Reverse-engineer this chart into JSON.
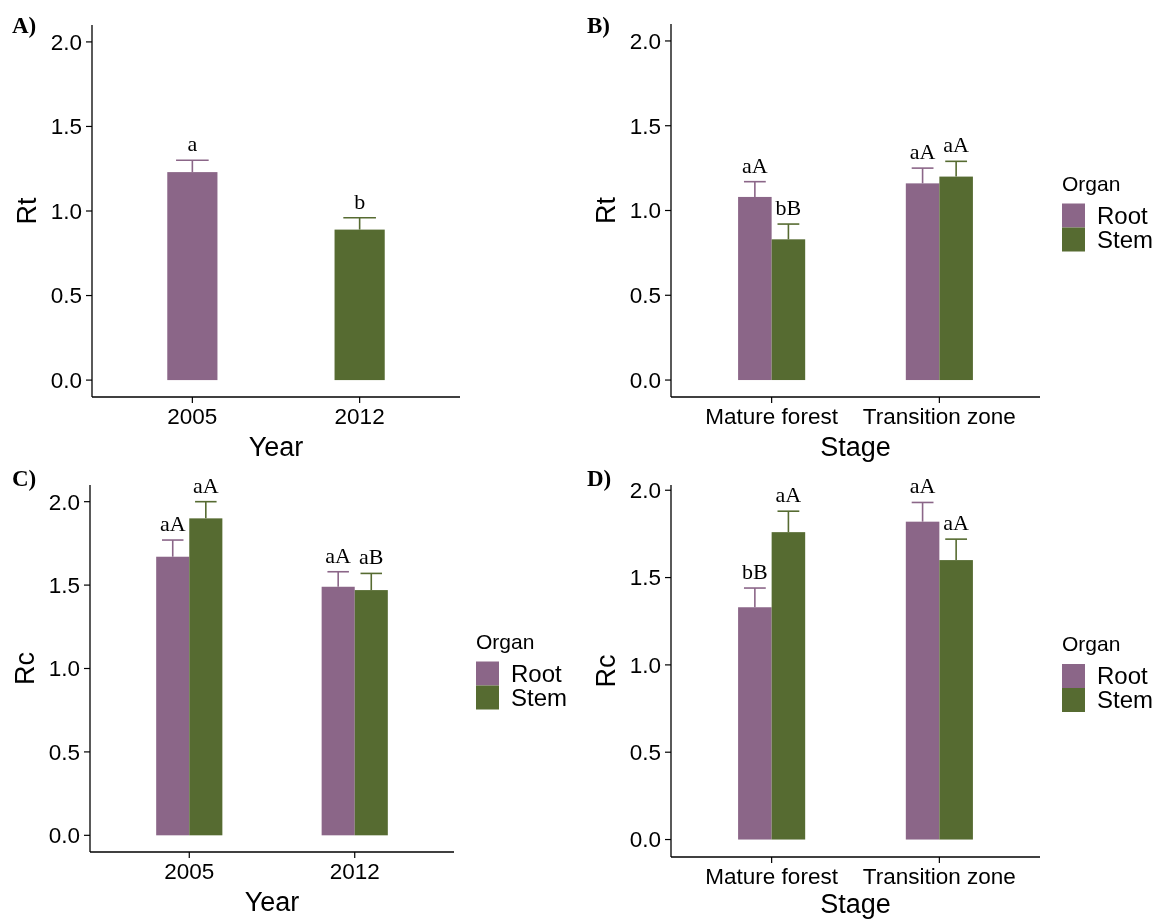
{
  "chart_data": [
    {
      "type": "bar",
      "title": "A)",
      "xlabel": "Year",
      "ylabel": "Rt",
      "categories": [
        "2005",
        "2012"
      ],
      "values": [
        1.23,
        0.89
      ],
      "colors": [
        "#8b6688",
        "#566b31"
      ],
      "errors": [
        [
          1.23,
          1.3
        ],
        [
          0.89,
          0.96
        ]
      ],
      "value_labels": [
        "a",
        "b"
      ],
      "ylim": [
        -0.1,
        2.1
      ],
      "yticks": [
        {
          "value": 0,
          "label": "0.0"
        },
        {
          "value": 0.5,
          "label": "0.5"
        },
        {
          "value": 1,
          "label": "1.0"
        },
        {
          "value": 1.5,
          "label": "1.5"
        },
        {
          "value": 2,
          "label": "2.0"
        }
      ]
    },
    {
      "type": "bar",
      "title": "B)",
      "xlabel": "Stage",
      "ylabel": "Rt",
      "legend_title": "Organ",
      "legend": "right",
      "categories": [
        "Mature forest",
        "Transition zone"
      ],
      "series": [
        {
          "name": "Root",
          "color": "#8b6688",
          "values": [
            1.08,
            1.16
          ],
          "errors": [
            [
              1.08,
              1.17
            ],
            [
              1.16,
              1.25
            ]
          ],
          "value_labels": [
            "aA",
            "aA"
          ]
        },
        {
          "name": "Stem",
          "color": "#566b31",
          "values": [
            0.83,
            1.2
          ],
          "errors": [
            [
              0.83,
              0.92
            ],
            [
              1.2,
              1.29
            ]
          ],
          "value_labels": [
            "bB",
            "aA"
          ]
        }
      ],
      "ylim": [
        -0.1,
        2.1
      ],
      "yticks": [
        {
          "value": 0,
          "label": "0.0"
        },
        {
          "value": 0.5,
          "label": "0.5"
        },
        {
          "value": 1,
          "label": "1.0"
        },
        {
          "value": 1.5,
          "label": "1.5"
        },
        {
          "value": 2,
          "label": "2.0"
        }
      ]
    },
    {
      "type": "bar",
      "title": "C)",
      "xlabel": "Year",
      "ylabel": "Rc",
      "legend_title": "Organ",
      "legend": "right",
      "categories": [
        "2005",
        "2012"
      ],
      "series": [
        {
          "name": "Root",
          "color": "#8b6688",
          "values": [
            1.67,
            1.49
          ],
          "errors": [
            [
              1.67,
              1.77
            ],
            [
              1.49,
              1.58
            ]
          ],
          "value_labels": [
            "aA",
            "aA"
          ]
        },
        {
          "name": "Stem",
          "color": "#566b31",
          "values": [
            1.9,
            1.47
          ],
          "errors": [
            [
              1.9,
              2.0
            ],
            [
              1.47,
              1.57
            ]
          ],
          "value_labels": [
            "aA",
            "aB"
          ]
        }
      ],
      "ylim": [
        -0.1,
        2.1
      ],
      "yticks": [
        {
          "value": 0,
          "label": "0.0"
        },
        {
          "value": 0.5,
          "label": "0.5"
        },
        {
          "value": 1,
          "label": "1.0"
        },
        {
          "value": 1.5,
          "label": "1.5"
        },
        {
          "value": 2,
          "label": "2.0"
        }
      ]
    },
    {
      "type": "bar",
      "title": "D)",
      "xlabel": "Stage",
      "ylabel": "Rc",
      "legend_title": "Organ",
      "legend": "right",
      "categories": [
        "Mature forest",
        "Transition zone"
      ],
      "series": [
        {
          "name": "Root",
          "color": "#8b6688",
          "values": [
            1.33,
            1.82
          ],
          "errors": [
            [
              1.33,
              1.44
            ],
            [
              1.82,
              1.93
            ]
          ],
          "value_labels": [
            "bB",
            "aA"
          ]
        },
        {
          "name": "Stem",
          "color": "#566b31",
          "values": [
            1.76,
            1.6
          ],
          "errors": [
            [
              1.76,
              1.88
            ],
            [
              1.6,
              1.72
            ]
          ],
          "value_labels": [
            "aA",
            "aA"
          ]
        }
      ],
      "ylim": [
        -0.1,
        2.03
      ],
      "yticks": [
        {
          "value": 0,
          "label": "0.0"
        },
        {
          "value": 0.5,
          "label": "0.5"
        },
        {
          "value": 1,
          "label": "1.0"
        },
        {
          "value": 1.5,
          "label": "1.5"
        },
        {
          "value": 2,
          "label": "2.0"
        }
      ]
    }
  ]
}
